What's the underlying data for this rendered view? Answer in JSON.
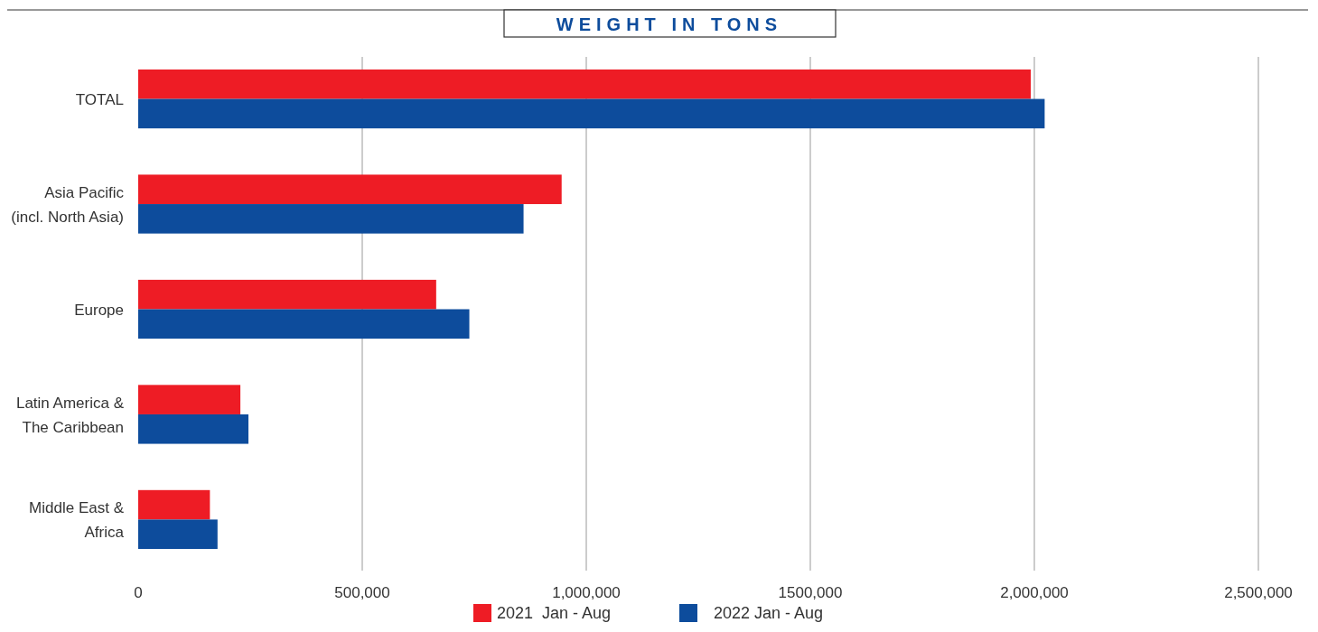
{
  "chart_data": {
    "type": "bar",
    "orientation": "horizontal",
    "title": "WEIGHT IN TONS",
    "categories": [
      "TOTAL",
      "Asia Pacific\n(incl. North Asia)",
      "Europe",
      "Latin America &\nThe Caribbean",
      "Middle East &\nAfrica"
    ],
    "series": [
      {
        "name": "2021  Jan - Aug",
        "color": "#ee1c25",
        "values": [
          1992000,
          945000,
          665000,
          228000,
          160000
        ]
      },
      {
        "name": "2022 Jan - Aug",
        "color": "#0d4c9c",
        "values": [
          2023000,
          860000,
          739000,
          246000,
          177000
        ]
      }
    ],
    "xlim": [
      0,
      2500000
    ],
    "xticks": [
      0,
      {
        "value": 500000,
        "label": "500,000"
      },
      {
        "value": 1000000,
        "label": "1,000,000"
      },
      {
        "value": 1500000,
        "label": "1500,000"
      },
      {
        "value": 2000000,
        "label": "2,000,000"
      },
      {
        "value": 2500000,
        "label": "2,500,000"
      }
    ],
    "grid": "x",
    "legend": "bottom"
  }
}
